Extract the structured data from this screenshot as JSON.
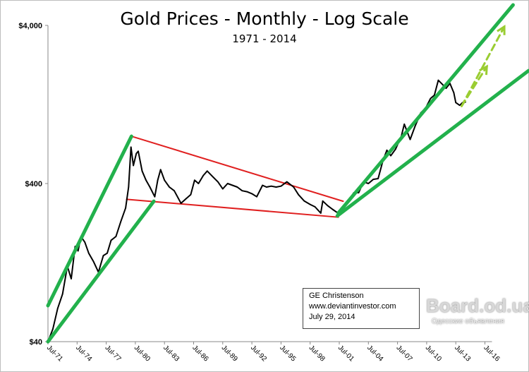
{
  "chart_data": {
    "type": "line",
    "title": "Gold Prices - Monthly - Log Scale",
    "subtitle": "1971 - 2014",
    "xlabel": "",
    "ylabel": "",
    "yscale": "log",
    "ylim": [
      40,
      4000
    ],
    "xlim": [
      1971.5,
      2016.5
    ],
    "y_ticks": [
      {
        "value": 40,
        "label": "$40"
      },
      {
        "value": 400,
        "label": "$400"
      },
      {
        "value": 4000,
        "label": "$4,000"
      }
    ],
    "x_ticks": [
      {
        "value": 1971.5,
        "label": "Jul-71"
      },
      {
        "value": 1974.5,
        "label": "Jul-74"
      },
      {
        "value": 1977.5,
        "label": "Jul-77"
      },
      {
        "value": 1980.5,
        "label": "Jul-80"
      },
      {
        "value": 1983.5,
        "label": "Jul-83"
      },
      {
        "value": 1986.5,
        "label": "Jul-86"
      },
      {
        "value": 1989.5,
        "label": "Jul-89"
      },
      {
        "value": 1992.5,
        "label": "Jul-92"
      },
      {
        "value": 1995.5,
        "label": "Jul-95"
      },
      {
        "value": 1998.5,
        "label": "Jul-98"
      },
      {
        "value": 2001.5,
        "label": "Jul-01"
      },
      {
        "value": 2004.5,
        "label": "Jul-04"
      },
      {
        "value": 2007.5,
        "label": "Jul-07"
      },
      {
        "value": 2010.5,
        "label": "Jul-10"
      },
      {
        "value": 2013.5,
        "label": "Jul-13"
      },
      {
        "value": 2016.5,
        "label": "Jul-16"
      }
    ],
    "grid": false,
    "series": [
      {
        "name": "Gold price",
        "color": "#000000",
        "x": [
          1971.5,
          1972.0,
          1972.5,
          1973.0,
          1973.5,
          1973.9,
          1974.3,
          1974.6,
          1974.9,
          1975.3,
          1975.7,
          1976.2,
          1976.7,
          1977.2,
          1977.6,
          1978.0,
          1978.5,
          1979.0,
          1979.5,
          1979.8,
          1980.05,
          1980.3,
          1980.6,
          1980.8,
          1981.2,
          1981.6,
          1982.0,
          1982.5,
          1982.8,
          1983.1,
          1983.5,
          1984.0,
          1984.5,
          1985.2,
          1985.7,
          1986.2,
          1986.6,
          1987.0,
          1987.5,
          1987.9,
          1988.5,
          1989.0,
          1989.5,
          1990.0,
          1990.5,
          1991.0,
          1991.5,
          1992.0,
          1992.5,
          1993.0,
          1993.6,
          1994.0,
          1994.5,
          1995.0,
          1995.5,
          1996.1,
          1996.8,
          1997.3,
          1997.9,
          1998.5,
          1999.0,
          1999.6,
          1999.8,
          2000.3,
          2000.8,
          2001.3,
          2001.8,
          2002.5,
          2003.0,
          2003.5,
          2004.0,
          2004.5,
          2005.0,
          2005.5,
          2006.0,
          2006.4,
          2006.8,
          2007.3,
          2007.9,
          2008.2,
          2008.8,
          2009.3,
          2009.9,
          2010.4,
          2010.9,
          2011.3,
          2011.7,
          2012.1,
          2012.5,
          2012.9,
          2013.3,
          2013.5,
          2013.9,
          2014.2,
          2014.5
        ],
        "y": [
          40,
          48,
          65,
          80,
          120,
          100,
          160,
          150,
          185,
          170,
          145,
          128,
          110,
          140,
          145,
          175,
          185,
          230,
          280,
          380,
          680,
          520,
          620,
          640,
          480,
          420,
          380,
          330,
          420,
          490,
          420,
          380,
          360,
          300,
          320,
          340,
          420,
          400,
          450,
          480,
          440,
          410,
          370,
          400,
          390,
          380,
          360,
          355,
          345,
          330,
          390,
          380,
          385,
          380,
          385,
          410,
          380,
          340,
          310,
          295,
          285,
          260,
          310,
          290,
          275,
          262,
          280,
          315,
          350,
          350,
          410,
          400,
          425,
          430,
          560,
          650,
          600,
          660,
          800,
          950,
          760,
          920,
          1120,
          1200,
          1380,
          1450,
          1800,
          1700,
          1600,
          1720,
          1500,
          1300,
          1250,
          1300,
          1310
        ]
      }
    ],
    "annotations": {
      "green_trendlines": [
        [
          [
            1971.5,
            67.6
          ],
          [
            1980.1,
            796
          ]
        ],
        [
          [
            1971.5,
            40
          ],
          [
            1982.4,
            309
          ]
        ],
        [
          [
            2001.4,
            260
          ],
          [
            2019.4,
            5390
          ]
        ],
        [
          [
            2001.3,
            250
          ],
          [
            2021.0,
            2070
          ]
        ]
      ],
      "red_trendlines": [
        [
          [
            1980.1,
            796
          ],
          [
            2001.9,
            309
          ]
        ],
        [
          [
            1979.6,
            318
          ],
          [
            2001.4,
            245
          ]
        ]
      ],
      "projection_arrows": [
        [
          [
            2014.1,
            1235
          ],
          [
            2016.7,
            2200
          ]
        ],
        [
          [
            2014.1,
            1235
          ],
          [
            2018.5,
            3930
          ]
        ]
      ],
      "colors": {
        "green": "#22b14c",
        "red": "#e02020",
        "arrow": "#9acd32"
      }
    }
  },
  "note": {
    "author": "GE Christenson",
    "site": "www.deviantinvestor.com",
    "date": "July 29, 2014"
  },
  "watermark": {
    "text": "Board.od.ua",
    "subtext": "Одесские объявления"
  }
}
